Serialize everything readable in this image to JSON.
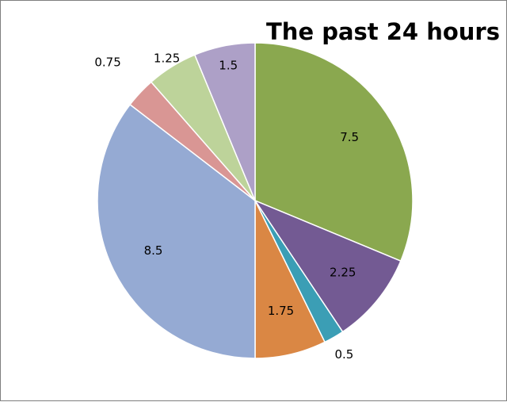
{
  "chart_data": {
    "type": "pie",
    "title": "The past 24 hours",
    "start_angle_deg": 0,
    "direction": "clockwise",
    "slices": [
      {
        "value": 7.5,
        "label": "7.5",
        "color": "#8AA84F"
      },
      {
        "value": 2.25,
        "label": "2.25",
        "color": "#735A93"
      },
      {
        "value": 0.5,
        "label": "0.5",
        "color": "#3B9EB5"
      },
      {
        "value": 1.75,
        "label": "1.75",
        "color": "#DA8744"
      },
      {
        "value": 8.5,
        "label": "8.5",
        "color": "#95AAD3"
      },
      {
        "value": 0.75,
        "label": "0.75",
        "color": "#D99694"
      },
      {
        "value": 1.25,
        "label": "1.25",
        "color": "#BDD39A"
      },
      {
        "value": 1.5,
        "label": "1.5",
        "color": "#ADA0C7"
      }
    ]
  }
}
